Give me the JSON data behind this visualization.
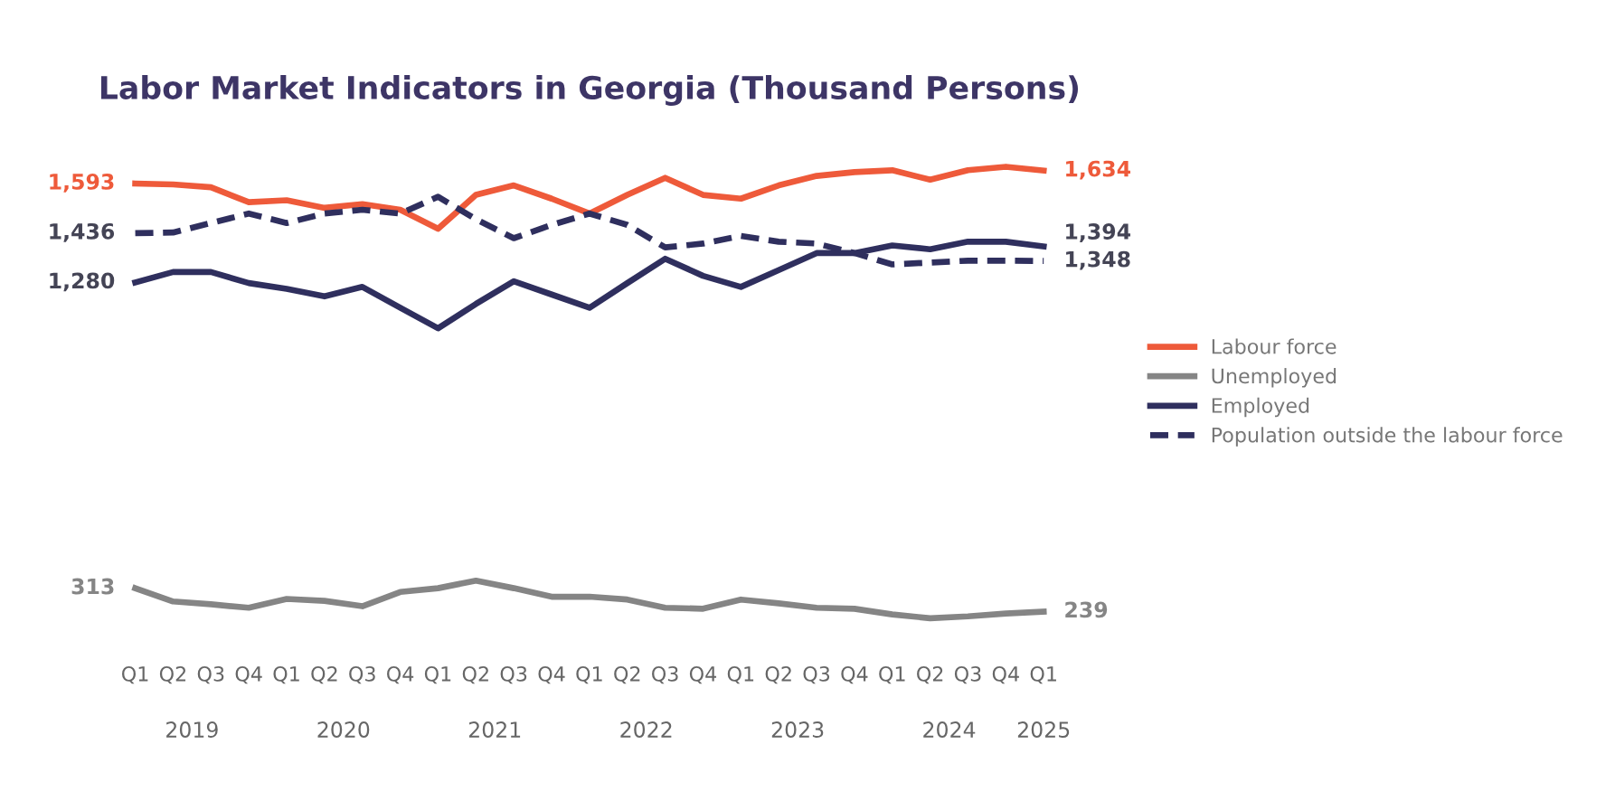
{
  "chart_data": {
    "type": "line",
    "title": "Labor Market Indicators in Georgia (Thousand Persons)",
    "categories": [
      "Q1",
      "Q2",
      "Q3",
      "Q4",
      "Q1",
      "Q2",
      "Q3",
      "Q4",
      "Q1",
      "Q2",
      "Q3",
      "Q4",
      "Q1",
      "Q2",
      "Q3",
      "Q4",
      "Q1",
      "Q2",
      "Q3",
      "Q4",
      "Q1",
      "Q2",
      "Q3",
      "Q4",
      "Q1"
    ],
    "annotations": [
      "2019",
      "2020",
      "2021",
      "2022",
      "2023",
      "2024",
      "2025"
    ],
    "tick_labels": "x",
    "grid": false,
    "legend": "right",
    "marker": "none",
    "series": [
      {
        "name": "Labour force",
        "color": "#ee5a3a",
        "line_style": "solid",
        "values": [
          1593,
          1590,
          1581,
          1534,
          1540,
          1516,
          1528,
          1510,
          1450,
          1557,
          1587,
          1545,
          1498,
          1557,
          1611,
          1557,
          1545,
          1587,
          1617,
          1629,
          1635,
          1605,
          1635,
          1646,
          1634
        ],
        "value_labels": [
          "1,593",
          null,
          null,
          null,
          null,
          null,
          null,
          null,
          null,
          null,
          null,
          null,
          null,
          null,
          null,
          null,
          null,
          null,
          null,
          null,
          null,
          null,
          null,
          null,
          "1,634"
        ]
      },
      {
        "name": "Unemployed",
        "color": "#858585",
        "line_style": "solid",
        "values": [
          313,
          271,
          262,
          251,
          279,
          273,
          256,
          301,
          313,
          337,
          313,
          286,
          286,
          277,
          251,
          248,
          277,
          265,
          251,
          248,
          230,
          218,
          224,
          233,
          239
        ],
        "value_labels": [
          "313",
          null,
          null,
          null,
          null,
          null,
          null,
          null,
          null,
          null,
          null,
          null,
          null,
          null,
          null,
          null,
          null,
          null,
          null,
          null,
          null,
          null,
          null,
          null,
          "239"
        ]
      },
      {
        "name": "Employed",
        "color": "#2f2f5e",
        "line_style": "solid",
        "values": [
          1280,
          1313,
          1313,
          1278,
          1260,
          1236,
          1266,
          1200,
          1135,
          1212,
          1284,
          1242,
          1200,
          1278,
          1355,
          1301,
          1266,
          1319,
          1373,
          1373,
          1397,
          1385,
          1409,
          1409,
          1394
        ],
        "value_labels": [
          "1,280",
          null,
          null,
          null,
          null,
          null,
          null,
          null,
          null,
          null,
          null,
          null,
          null,
          null,
          null,
          null,
          null,
          null,
          null,
          null,
          null,
          null,
          null,
          null,
          "1,394"
        ]
      },
      {
        "name": "Population outside the labour force",
        "color": "#2f2f5e",
        "line_style": "dashed",
        "values": [
          1436,
          1438,
          1468,
          1498,
          1468,
          1498,
          1510,
          1498,
          1551,
          1480,
          1420,
          1462,
          1498,
          1462,
          1391,
          1403,
          1427,
          1409,
          1403,
          1373,
          1337,
          1343,
          1349,
          1349,
          1348
        ],
        "value_labels": [
          "1,436",
          null,
          null,
          null,
          null,
          null,
          null,
          null,
          null,
          null,
          null,
          null,
          null,
          null,
          null,
          null,
          null,
          null,
          null,
          null,
          null,
          null,
          null,
          null,
          "1,348"
        ]
      }
    ]
  }
}
